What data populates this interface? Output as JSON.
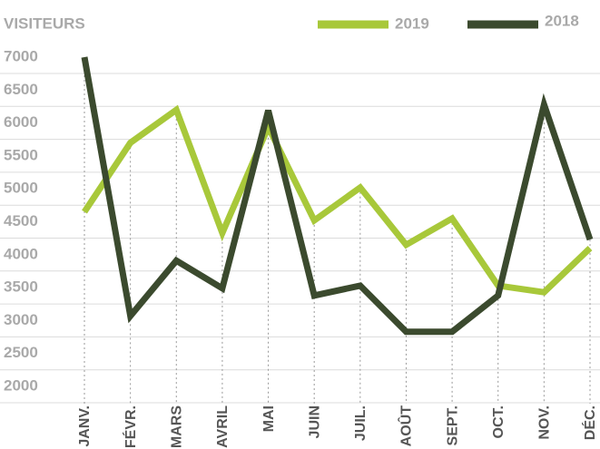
{
  "chart_data": {
    "type": "line",
    "y_label": "VISITEURS",
    "categories": [
      "JANV.",
      "FÉVR.",
      "MARS",
      "AVRIL",
      "MAI",
      "JUIN",
      "JUIL.",
      "AOÛT",
      "SEPT.",
      "OCT.",
      "NOV.",
      "DÉC."
    ],
    "series": [
      {
        "name": "2019",
        "color": "#a8c83a",
        "values": [
          4650,
          5700,
          6200,
          4330,
          5940,
          4520,
          5020,
          4150,
          4550,
          3530,
          3430,
          4100
        ]
      },
      {
        "name": "2018",
        "color": "#3b4a2e",
        "values": [
          7000,
          3070,
          3910,
          3490,
          6190,
          3380,
          3530,
          2830,
          2830,
          3380,
          6280,
          4230
        ]
      }
    ],
    "ylim": [
      2000,
      7000
    ],
    "yticks": [
      2000,
      2500,
      3000,
      3500,
      4000,
      4500,
      5000,
      5500,
      6000,
      6500,
      7000
    ],
    "grid": true
  }
}
